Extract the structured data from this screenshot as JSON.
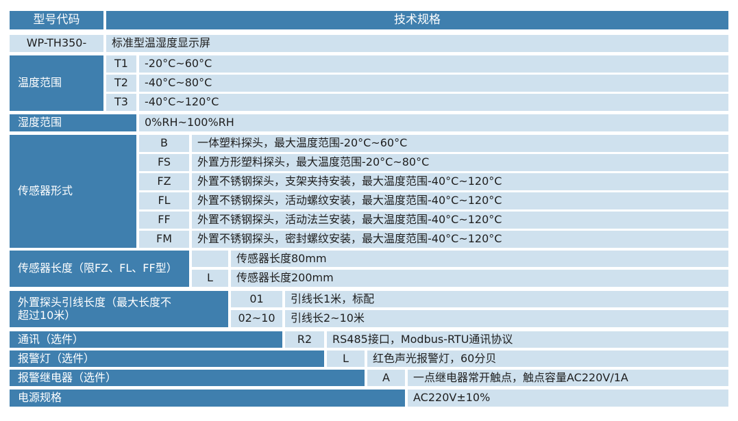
{
  "header": {
    "col1": "型号代码",
    "col2": "技术规格"
  },
  "model": {
    "code": "WP-TH350-",
    "desc": "标准型温湿度显示屏"
  },
  "temp_range": {
    "label": "温度范围",
    "options": [
      {
        "code": "T1",
        "desc": "-20°C~60°C"
      },
      {
        "code": "T2",
        "desc": "-40°C~80°C"
      },
      {
        "code": "T3",
        "desc": "-40°C~120°C"
      }
    ]
  },
  "humidity_range": {
    "label": "湿度范围",
    "desc": "0%RH~100%RH"
  },
  "sensor_form": {
    "label": "传感器形式",
    "options": [
      {
        "code": "B",
        "desc": "一体塑料探头，最大温度范围-20°C~60°C"
      },
      {
        "code": "FS",
        "desc": "外置方形塑料探头，最大温度范围-20°C~80°C"
      },
      {
        "code": "FZ",
        "desc": "外置不锈钢探头，支架夹持安装，最大温度范围-40°C~120°C"
      },
      {
        "code": "FL",
        "desc": "外置不锈钢探头，活动螺纹安装，最大温度范围-40°C~120°C"
      },
      {
        "code": "FF",
        "desc": "外置不锈钢探头，活动法兰安装，最大温度范围-40°C~120°C"
      },
      {
        "code": "FM",
        "desc": "外置不锈钢探头，密封螺纹安装，最大温度范围-40°C~120°C"
      }
    ]
  },
  "sensor_length": {
    "label": "传感器长度（限FZ、FL、FF型）",
    "options": [
      {
        "code": "",
        "desc": "传感器长度80mm"
      },
      {
        "code": "L",
        "desc": "传感器长度200mm"
      }
    ]
  },
  "cable_length": {
    "label": "外置探头引线长度（最大长度不超过10米）",
    "options": [
      {
        "code": "01",
        "desc": "引线长1米，标配"
      },
      {
        "code": "02~10",
        "desc": "引线长2~10米"
      }
    ]
  },
  "communication": {
    "label": "通讯（选件）",
    "code": "R2",
    "desc": "RS485接口，Modbus-RTU通讯协议"
  },
  "alarm_light": {
    "label": "报警灯（选件）",
    "code": "L",
    "desc": "红色声光报警灯，60分贝"
  },
  "alarm_relay": {
    "label": "报警继电器（选件）",
    "code": "A",
    "desc": "一点继电器常开触点，触点容量AC220V/1A"
  },
  "power": {
    "label": "电源规格",
    "desc": "AC220V±10%"
  },
  "colors": {
    "header_bg": "#3f7fae",
    "cell_bg": "#cfe1ee",
    "header_text": "#ffffff",
    "cell_text": "#1e1e1e"
  }
}
